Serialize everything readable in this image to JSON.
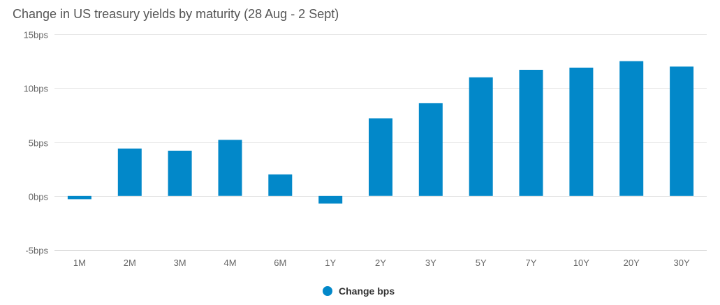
{
  "chart_data": {
    "type": "bar",
    "title": "Change in US treasury yields by maturity (28 Aug - 2 Sept)",
    "categories": [
      "1M",
      "2M",
      "3M",
      "4M",
      "6M",
      "1Y",
      "2Y",
      "3Y",
      "5Y",
      "7Y",
      "10Y",
      "20Y",
      "30Y"
    ],
    "series": [
      {
        "name": "Change bps",
        "color": "#0288c9",
        "values": [
          -0.3,
          4.4,
          4.2,
          5.2,
          2.0,
          -0.7,
          7.2,
          8.6,
          11.0,
          11.7,
          11.9,
          12.5,
          12.0
        ]
      }
    ],
    "ylim": [
      -5,
      15
    ],
    "yticks": [
      -5,
      0,
      5,
      10,
      15
    ],
    "ytick_labels": [
      "-5bps",
      "0bps",
      "5bps",
      "10bps",
      "15bps"
    ],
    "grid": true,
    "legend_position": "bottom-center",
    "xlabel": "",
    "ylabel": ""
  }
}
